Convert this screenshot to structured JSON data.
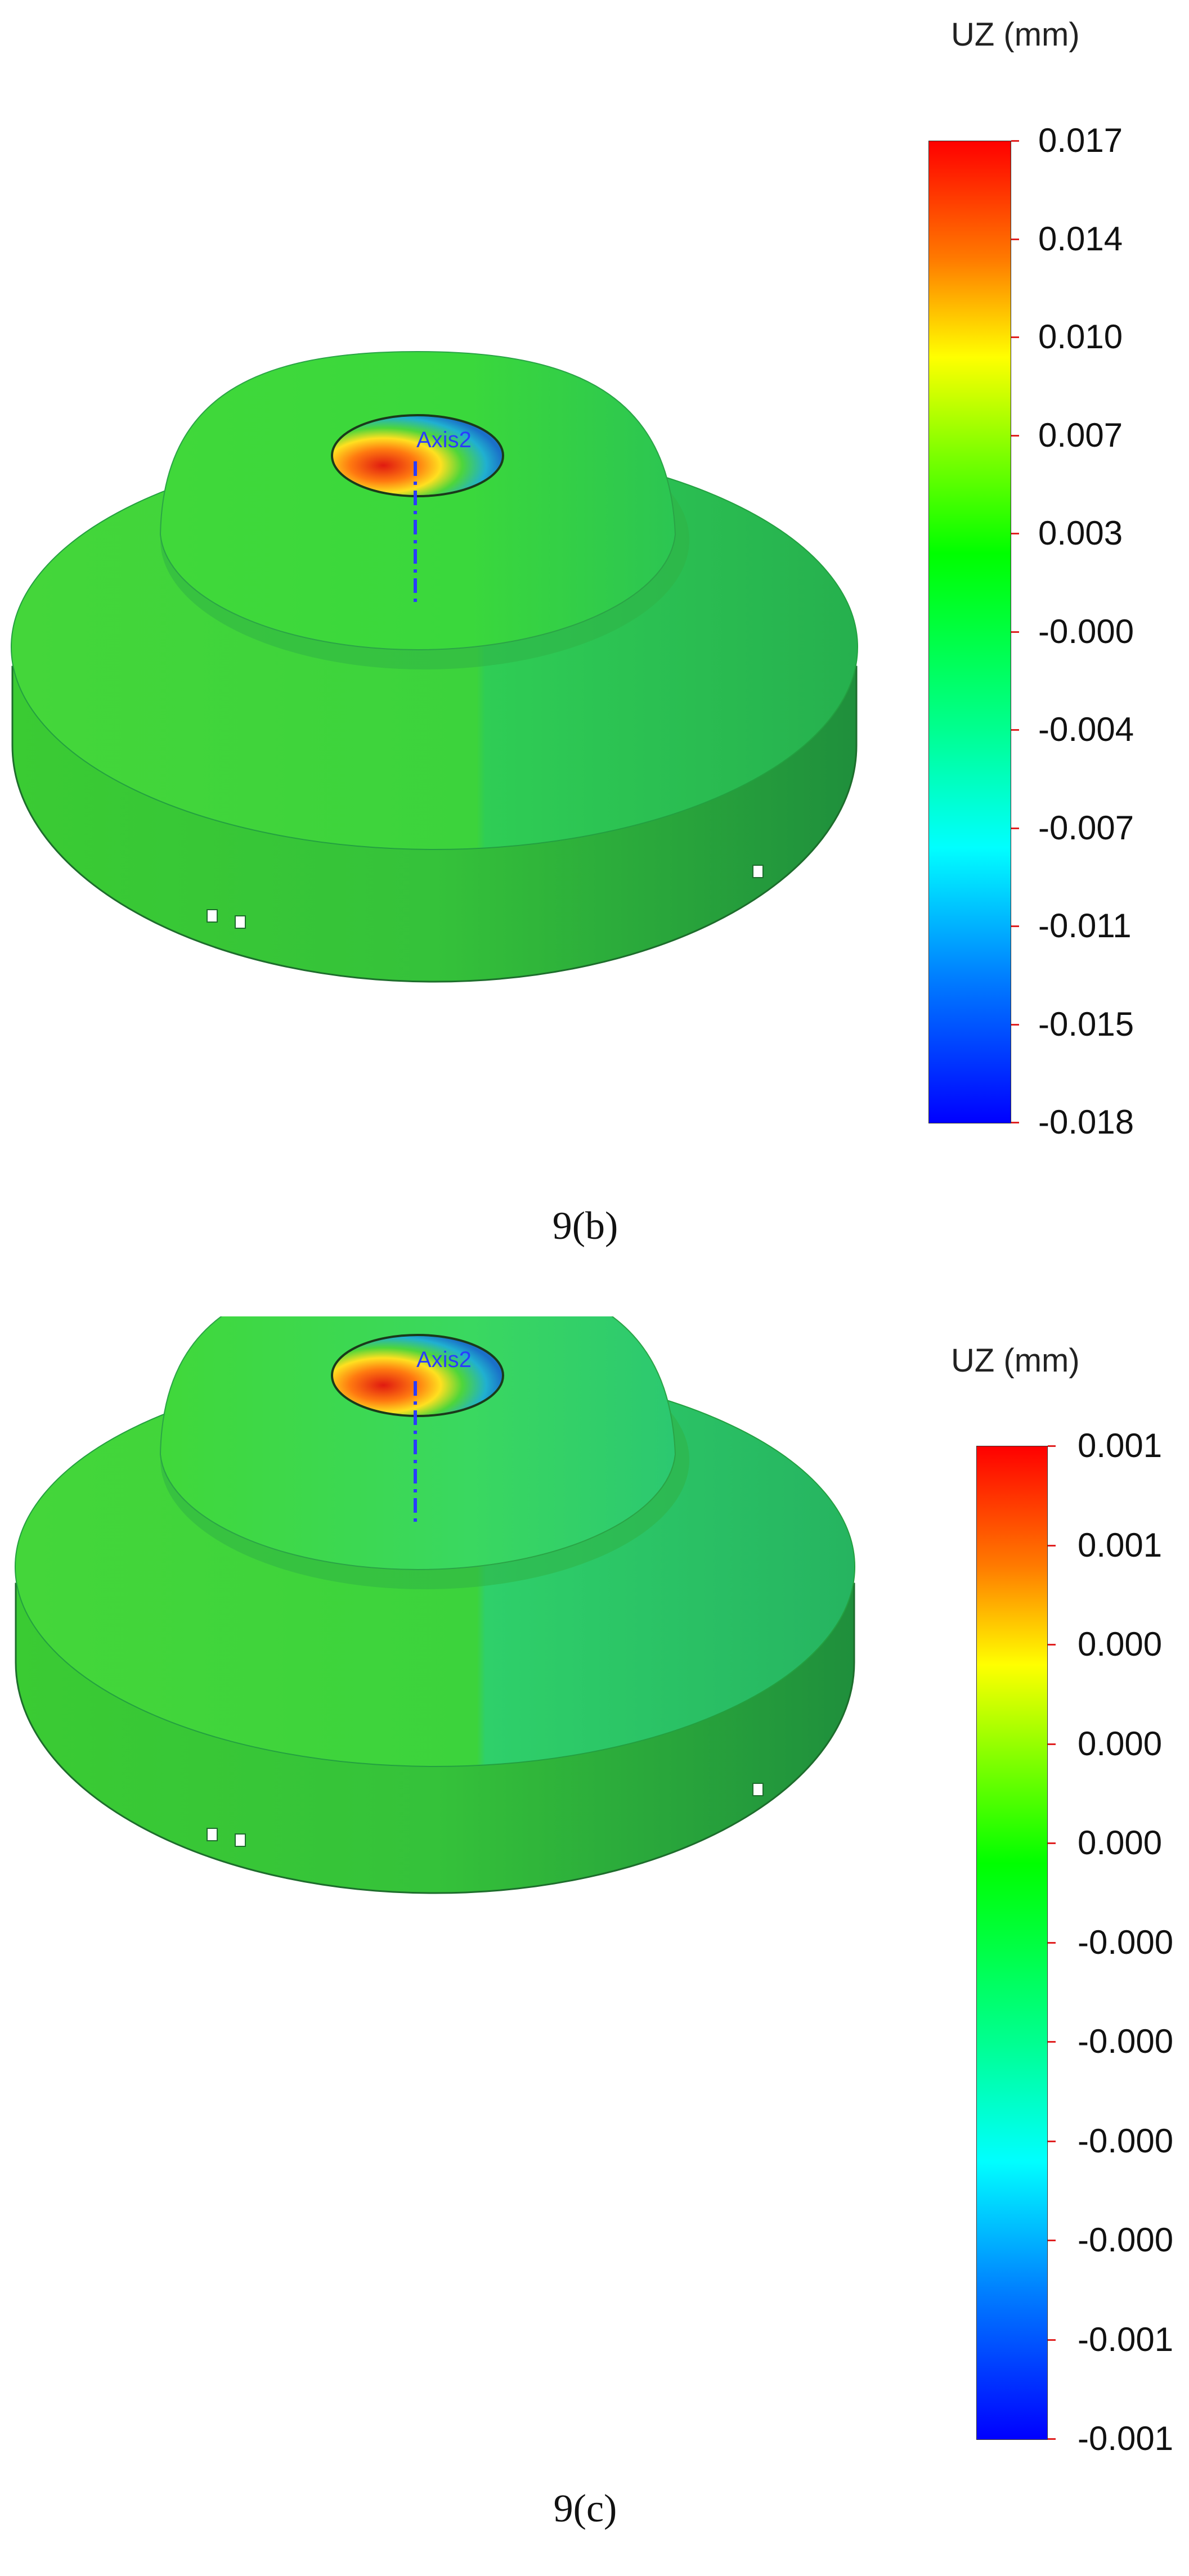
{
  "panels": [
    {
      "id": "b",
      "caption": "9(b)",
      "axis_label": "Axis2",
      "legend_title": "UZ (mm)",
      "legend_ticks": [
        "0.017",
        "0.014",
        "0.010",
        "0.007",
        "0.003",
        "-0.000",
        "-0.004",
        "-0.007",
        "-0.011",
        "-0.015",
        "-0.018"
      ]
    },
    {
      "id": "c",
      "caption": "9(c)",
      "axis_label": "Axis2",
      "legend_title": "UZ (mm)",
      "legend_ticks": [
        "0.001",
        "0.001",
        "0.000",
        "0.000",
        "0.000",
        "-0.000",
        "-0.000",
        "-0.000",
        "-0.000",
        "-0.001",
        "-0.001"
      ]
    }
  ],
  "colors": {
    "colormap": [
      "#ff0000",
      "#ff7a00",
      "#ffff00",
      "#7cff00",
      "#00ff00",
      "#00ff90",
      "#00ffff",
      "#0080ff",
      "#0000ff"
    ],
    "model_green": "#2ed62a",
    "tick_red": "#e02020",
    "axis_line": "#2a3cff"
  }
}
